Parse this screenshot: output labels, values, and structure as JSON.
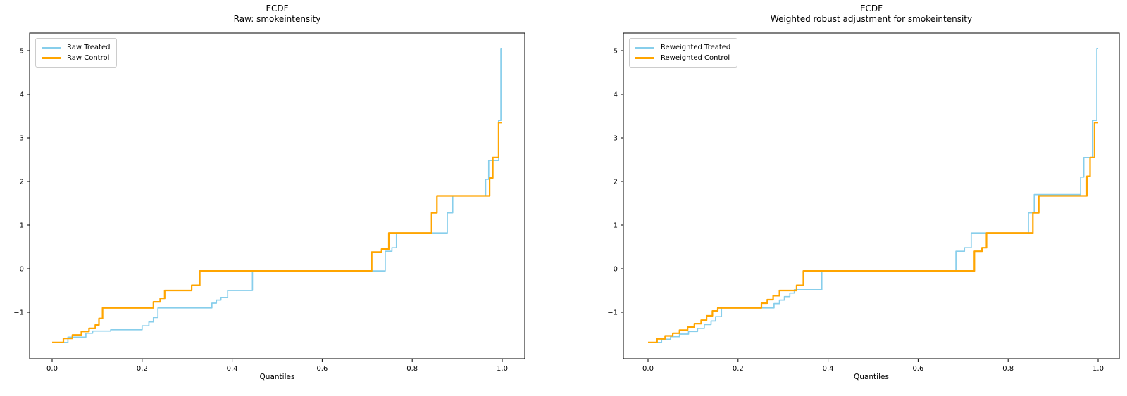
{
  "figure": {
    "background": "#ffffff",
    "axis_color": "#000000"
  },
  "chart_data": [
    {
      "type": "line",
      "subtype": "ecdf-step",
      "title_line1": "ECDF",
      "title_line2": "Raw: smokeintensity",
      "xlabel": "Quantiles",
      "xlim": [
        -0.05,
        1.05
      ],
      "ylim": [
        -2.06,
        5.4
      ],
      "grid": false,
      "legend_position": "upper-left",
      "xticks": [
        {
          "v": 0.0,
          "label": "0.0"
        },
        {
          "v": 0.2,
          "label": "0.2"
        },
        {
          "v": 0.4,
          "label": "0.4"
        },
        {
          "v": 0.6,
          "label": "0.6"
        },
        {
          "v": 0.8,
          "label": "0.8"
        },
        {
          "v": 1.0,
          "label": "1.0"
        }
      ],
      "yticks": [
        {
          "v": -1,
          "label": "−1"
        },
        {
          "v": 0,
          "label": "0"
        },
        {
          "v": 1,
          "label": "1"
        },
        {
          "v": 2,
          "label": "2"
        },
        {
          "v": 3,
          "label": "3"
        },
        {
          "v": 4,
          "label": "4"
        },
        {
          "v": 5,
          "label": "5"
        }
      ],
      "series": [
        {
          "name": "Raw Treated",
          "color": "#87CEEB",
          "width": 1.7,
          "steps": [
            [
              0.0,
              -1.69
            ],
            [
              0.035,
              -1.57
            ],
            [
              0.075,
              -1.48
            ],
            [
              0.09,
              -1.43
            ],
            [
              0.13,
              -1.4
            ],
            [
              0.2,
              -1.31
            ],
            [
              0.215,
              -1.22
            ],
            [
              0.225,
              -1.12
            ],
            [
              0.235,
              -0.9
            ],
            [
              0.355,
              -0.79
            ],
            [
              0.365,
              -0.72
            ],
            [
              0.375,
              -0.66
            ],
            [
              0.39,
              -0.5
            ],
            [
              0.445,
              -0.05
            ],
            [
              0.74,
              0.4
            ],
            [
              0.755,
              0.48
            ],
            [
              0.765,
              0.82
            ],
            [
              0.878,
              1.28
            ],
            [
              0.89,
              1.67
            ],
            [
              0.963,
              2.05
            ],
            [
              0.97,
              2.48
            ],
            [
              0.992,
              3.4
            ],
            [
              0.997,
              5.05
            ]
          ]
        },
        {
          "name": "Raw Control",
          "color": "#FFA500",
          "width": 2.2,
          "steps": [
            [
              0.0,
              -1.69
            ],
            [
              0.025,
              -1.6
            ],
            [
              0.045,
              -1.52
            ],
            [
              0.065,
              -1.44
            ],
            [
              0.082,
              -1.37
            ],
            [
              0.096,
              -1.29
            ],
            [
              0.104,
              -1.14
            ],
            [
              0.112,
              -0.9
            ],
            [
              0.225,
              -0.76
            ],
            [
              0.24,
              -0.68
            ],
            [
              0.25,
              -0.5
            ],
            [
              0.31,
              -0.38
            ],
            [
              0.328,
              -0.05
            ],
            [
              0.71,
              0.38
            ],
            [
              0.732,
              0.45
            ],
            [
              0.748,
              0.82
            ],
            [
              0.843,
              1.28
            ],
            [
              0.855,
              1.67
            ],
            [
              0.972,
              2.08
            ],
            [
              0.979,
              2.55
            ],
            [
              0.992,
              3.35
            ],
            [
              1.0,
              3.35
            ]
          ]
        }
      ]
    },
    {
      "type": "line",
      "subtype": "ecdf-step",
      "title_line1": "ECDF",
      "title_line2": "Weighted robust adjustment for smokeintensity",
      "xlabel": "Quantiles",
      "xlim": [
        -0.05,
        1.05
      ],
      "ylim": [
        -2.06,
        5.4
      ],
      "grid": false,
      "legend_position": "upper-left",
      "xticks": [
        {
          "v": 0.0,
          "label": "0.0"
        },
        {
          "v": 0.2,
          "label": "0.2"
        },
        {
          "v": 0.4,
          "label": "0.4"
        },
        {
          "v": 0.6,
          "label": "0.6"
        },
        {
          "v": 0.8,
          "label": "0.8"
        },
        {
          "v": 1.0,
          "label": "1.0"
        }
      ],
      "yticks": [
        {
          "v": -1,
          "label": "−1"
        },
        {
          "v": 0,
          "label": "0"
        },
        {
          "v": 1,
          "label": "1"
        },
        {
          "v": 2,
          "label": "2"
        },
        {
          "v": 3,
          "label": "3"
        },
        {
          "v": 4,
          "label": "4"
        },
        {
          "v": 5,
          "label": "5"
        }
      ],
      "series": [
        {
          "name": "Reweighted Treated",
          "color": "#87CEEB",
          "width": 1.7,
          "steps": [
            [
              0.0,
              -1.69
            ],
            [
              0.03,
              -1.62
            ],
            [
              0.05,
              -1.56
            ],
            [
              0.07,
              -1.5
            ],
            [
              0.09,
              -1.44
            ],
            [
              0.11,
              -1.37
            ],
            [
              0.125,
              -1.28
            ],
            [
              0.14,
              -1.2
            ],
            [
              0.15,
              -1.1
            ],
            [
              0.163,
              -0.9
            ],
            [
              0.28,
              -0.8
            ],
            [
              0.292,
              -0.72
            ],
            [
              0.303,
              -0.64
            ],
            [
              0.315,
              -0.56
            ],
            [
              0.325,
              -0.48
            ],
            [
              0.386,
              -0.05
            ],
            [
              0.684,
              0.4
            ],
            [
              0.703,
              0.48
            ],
            [
              0.718,
              0.82
            ],
            [
              0.845,
              1.28
            ],
            [
              0.858,
              1.7
            ],
            [
              0.961,
              2.1
            ],
            [
              0.968,
              2.55
            ],
            [
              0.988,
              3.4
            ],
            [
              0.997,
              5.05
            ]
          ]
        },
        {
          "name": "Reweighted Control",
          "color": "#FFA500",
          "width": 2.2,
          "steps": [
            [
              0.0,
              -1.69
            ],
            [
              0.02,
              -1.61
            ],
            [
              0.038,
              -1.54
            ],
            [
              0.055,
              -1.48
            ],
            [
              0.07,
              -1.41
            ],
            [
              0.088,
              -1.34
            ],
            [
              0.103,
              -1.26
            ],
            [
              0.118,
              -1.18
            ],
            [
              0.13,
              -1.08
            ],
            [
              0.143,
              -0.97
            ],
            [
              0.155,
              -0.9
            ],
            [
              0.252,
              -0.79
            ],
            [
              0.265,
              -0.71
            ],
            [
              0.278,
              -0.62
            ],
            [
              0.292,
              -0.5
            ],
            [
              0.33,
              -0.38
            ],
            [
              0.345,
              -0.05
            ],
            [
              0.725,
              0.4
            ],
            [
              0.742,
              0.48
            ],
            [
              0.752,
              0.82
            ],
            [
              0.855,
              1.28
            ],
            [
              0.868,
              1.67
            ],
            [
              0.975,
              2.12
            ],
            [
              0.982,
              2.55
            ],
            [
              0.992,
              3.35
            ],
            [
              1.0,
              3.35
            ]
          ]
        }
      ]
    }
  ]
}
